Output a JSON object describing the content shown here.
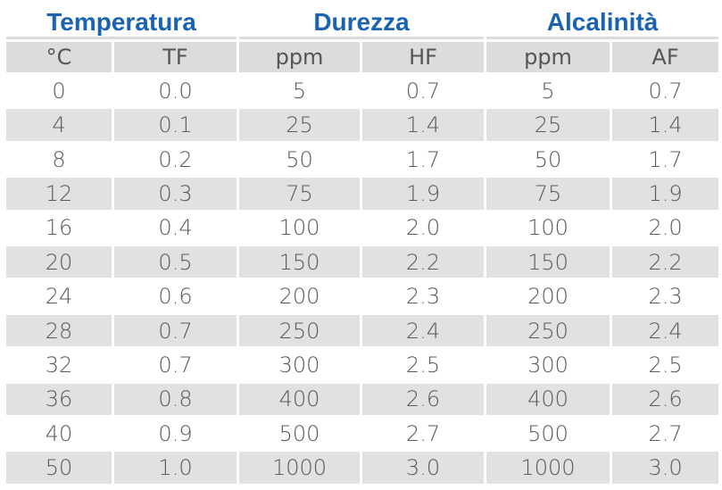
{
  "groups": [
    "Temperatura",
    "Durezza",
    "Alcalinità"
  ],
  "units": [
    "°C",
    "TF",
    "ppm",
    "HF",
    "ppm",
    "AF"
  ],
  "rows": [
    [
      "0",
      "0.0",
      "5",
      "0.7",
      "5",
      "0.7"
    ],
    [
      "4",
      "0.1",
      "25",
      "1.4",
      "25",
      "1.4"
    ],
    [
      "8",
      "0.2",
      "50",
      "1.7",
      "50",
      "1.7"
    ],
    [
      "12",
      "0.3",
      "75",
      "1.9",
      "75",
      "1.9"
    ],
    [
      "16",
      "0.4",
      "100",
      "2.0",
      "100",
      "2.0"
    ],
    [
      "20",
      "0.5",
      "150",
      "2.2",
      "150",
      "2.2"
    ],
    [
      "24",
      "0.6",
      "200",
      "2.3",
      "200",
      "2.3"
    ],
    [
      "28",
      "0.7",
      "250",
      "2.4",
      "250",
      "2.4"
    ],
    [
      "32",
      "0.7",
      "300",
      "2.5",
      "300",
      "2.5"
    ],
    [
      "36",
      "0.8",
      "400",
      "2.6",
      "400",
      "2.6"
    ],
    [
      "40",
      "0.9",
      "500",
      "2.7",
      "500",
      "2.7"
    ],
    [
      "50",
      "1.0",
      "1000",
      "3.0",
      "1000",
      "3.0"
    ]
  ],
  "colors": {
    "header_text": "#1a63b3",
    "unit_background": "#dcdcdc",
    "stripe_background": "#e1e1e1",
    "cell_text": "#5a5a5a"
  }
}
